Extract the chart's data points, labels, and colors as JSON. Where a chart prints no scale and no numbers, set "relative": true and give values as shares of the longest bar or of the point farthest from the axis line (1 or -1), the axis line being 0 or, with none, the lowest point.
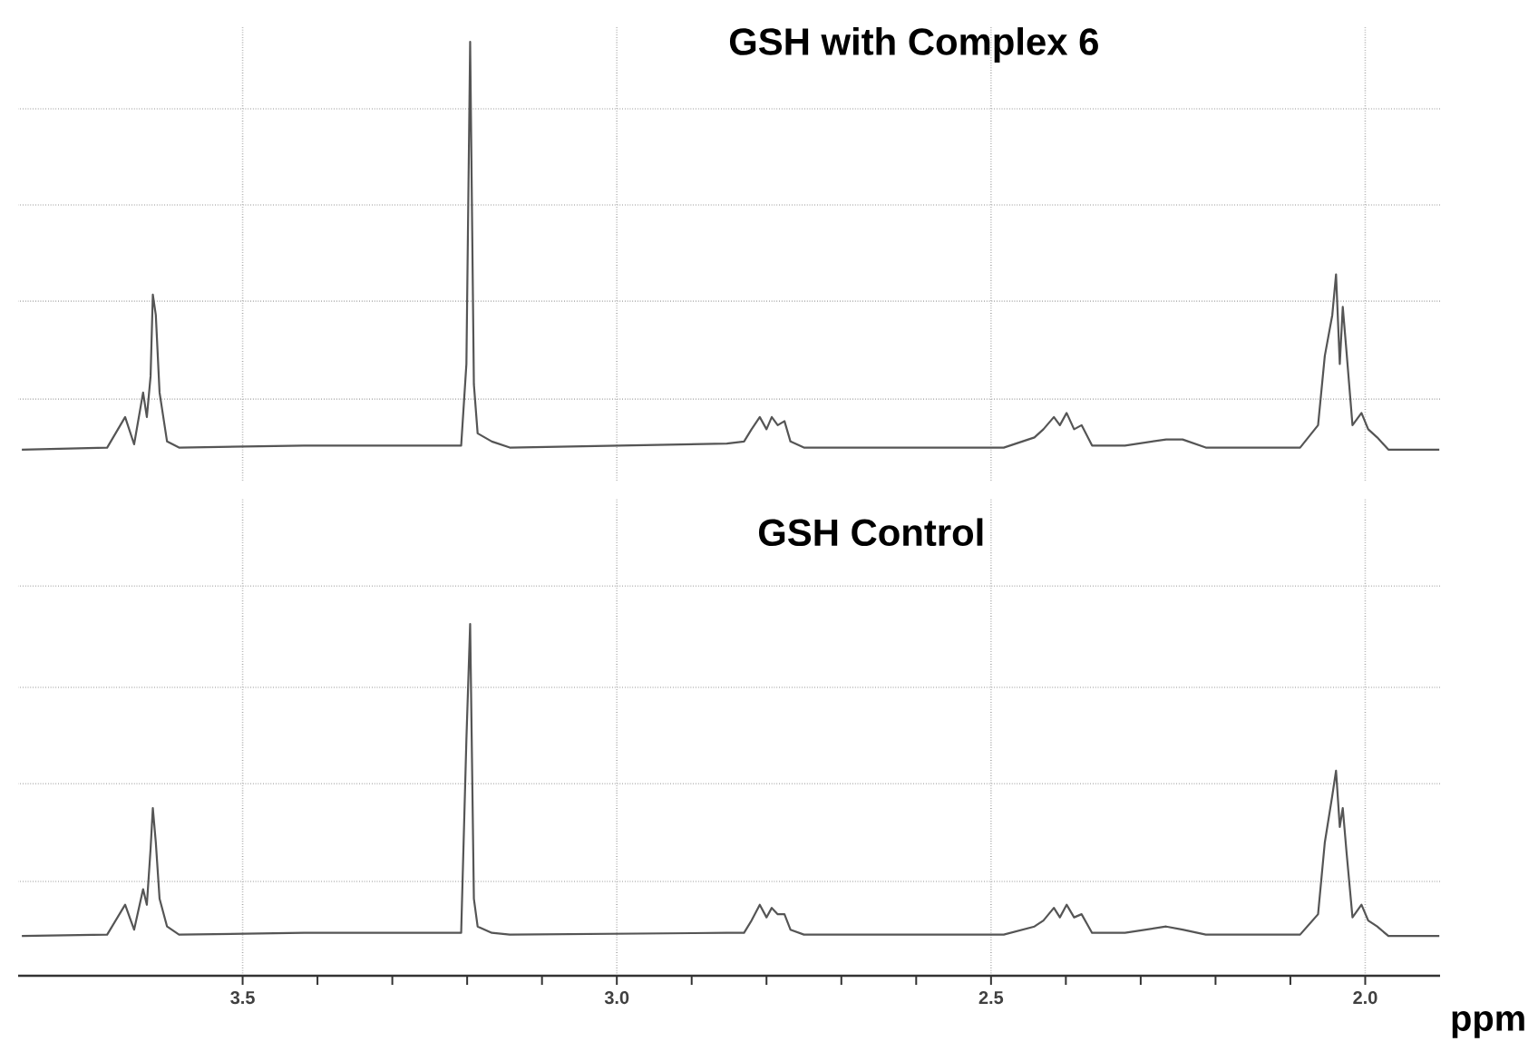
{
  "chart_data": [
    {
      "type": "line",
      "title": "GSH with Complex 6",
      "relative": true,
      "xlim": [
        3.8,
        1.9
      ],
      "grid": true,
      "tick_labels": false,
      "color": "#555555",
      "x": [
        3.795,
        3.681,
        3.657,
        3.645,
        3.633,
        3.628,
        3.623,
        3.62,
        3.616,
        3.611,
        3.601,
        3.585,
        3.418,
        3.394,
        3.324,
        3.287,
        3.208,
        3.201,
        3.196,
        3.191,
        3.186,
        3.167,
        3.143,
        2.853,
        2.83,
        2.82,
        2.809,
        2.8,
        2.793,
        2.785,
        2.776,
        2.768,
        2.75,
        2.483,
        2.442,
        2.43,
        2.416,
        2.408,
        2.399,
        2.389,
        2.379,
        2.365,
        2.321,
        2.266,
        2.244,
        2.213,
        2.087,
        2.063,
        2.054,
        2.044,
        2.039,
        2.034,
        2.03,
        2.025,
        2.017,
        2.005,
        1.996,
        1.984,
        1.969,
        1.901
      ],
      "values": [
        0,
        0.005,
        0.08,
        0.013,
        0.14,
        0.08,
        0.18,
        0.38,
        0.33,
        0.14,
        0.02,
        0.005,
        0.01,
        0.01,
        0.01,
        0.01,
        0.01,
        0.21,
        1.0,
        0.16,
        0.04,
        0.02,
        0.005,
        0.015,
        0.02,
        0.05,
        0.08,
        0.05,
        0.08,
        0.06,
        0.07,
        0.02,
        0.005,
        0.005,
        0.03,
        0.05,
        0.08,
        0.06,
        0.09,
        0.05,
        0.06,
        0.01,
        0.01,
        0.025,
        0.025,
        0.005,
        0.005,
        0.06,
        0.23,
        0.33,
        0.43,
        0.21,
        0.35,
        0.24,
        0.06,
        0.09,
        0.05,
        0.03,
        0,
        0
      ]
    },
    {
      "type": "line",
      "title": "GSH Control",
      "xlabel": "ppm",
      "relative": true,
      "xlim": [
        3.8,
        1.9
      ],
      "xticks": [
        3.5,
        {
          "value": 3.0,
          "label": "3.0"
        },
        2.5,
        {
          "value": 2.0,
          "label": "2.0"
        }
      ],
      "grid": true,
      "tick_labels": "x",
      "color": "#555555",
      "x": [
        3.795,
        3.681,
        3.657,
        3.645,
        3.633,
        3.628,
        3.623,
        3.62,
        3.616,
        3.611,
        3.601,
        3.585,
        3.418,
        3.394,
        3.324,
        3.287,
        3.208,
        3.201,
        3.196,
        3.191,
        3.186,
        3.167,
        3.143,
        2.853,
        2.83,
        2.82,
        2.809,
        2.8,
        2.793,
        2.785,
        2.776,
        2.768,
        2.75,
        2.483,
        2.442,
        2.43,
        2.416,
        2.408,
        2.399,
        2.389,
        2.379,
        2.365,
        2.321,
        2.266,
        2.244,
        2.213,
        2.087,
        2.063,
        2.054,
        2.044,
        2.039,
        2.034,
        2.03,
        2.025,
        2.017,
        2.005,
        1.996,
        1.984,
        1.969,
        1.901
      ],
      "values": [
        0.113,
        0.117,
        0.202,
        0.131,
        0.246,
        0.202,
        0.361,
        0.477,
        0.379,
        0.219,
        0.14,
        0.117,
        0.122,
        0.122,
        0.122,
        0.122,
        0.122,
        0.672,
        1.0,
        0.219,
        0.14,
        0.122,
        0.117,
        0.122,
        0.122,
        0.157,
        0.202,
        0.166,
        0.193,
        0.175,
        0.175,
        0.131,
        0.117,
        0.117,
        0.14,
        0.157,
        0.193,
        0.166,
        0.202,
        0.166,
        0.175,
        0.122,
        0.122,
        0.14,
        0.131,
        0.117,
        0.117,
        0.175,
        0.379,
        0.512,
        0.583,
        0.423,
        0.477,
        0.352,
        0.166,
        0.202,
        0.157,
        0.14,
        0.113,
        0.113
      ]
    }
  ]
}
